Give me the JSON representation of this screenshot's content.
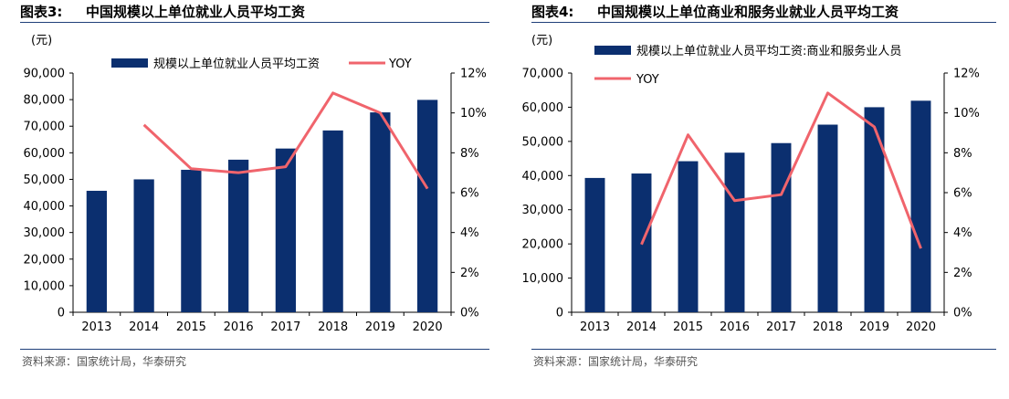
{
  "panels": [
    {
      "fig_label": "图表3:",
      "fig_title": "中国规模以上单位就业人员平均工资",
      "source": "资料来源：国家统计局，华泰研究",
      "chart_data": {
        "type": "bar+line",
        "unit_label": "(元)",
        "categories": [
          "2013",
          "2014",
          "2015",
          "2016",
          "2017",
          "2018",
          "2019",
          "2020"
        ],
        "series": [
          {
            "name": "规模以上单位就业人员平均工资",
            "type": "bar",
            "axis": "left",
            "values": [
              45700,
              50000,
              53600,
              57400,
              61600,
              68400,
              75200,
              79900
            ]
          },
          {
            "name": "YOY",
            "type": "line",
            "axis": "right",
            "values": [
              null,
              9.4,
              7.2,
              7.0,
              7.3,
              11.0,
              10.0,
              6.2
            ]
          }
        ],
        "left_axis": {
          "min": 0,
          "max": 90000,
          "step": 10000,
          "tick_labels": [
            "0",
            "10,000",
            "20,000",
            "30,000",
            "40,000",
            "50,000",
            "60,000",
            "70,000",
            "80,000",
            "90,000"
          ]
        },
        "right_axis": {
          "min": 0,
          "max": 12,
          "step": 2,
          "tick_labels": [
            "0%",
            "2%",
            "4%",
            "6%",
            "8%",
            "10%",
            "12%"
          ]
        },
        "legend": "top-inside",
        "grid": false
      }
    },
    {
      "fig_label": "图表4:",
      "fig_title": "中国规模以上单位商业和服务业就业人员平均工资",
      "source": "资料来源：国家统计局，华泰研究",
      "chart_data": {
        "type": "bar+line",
        "unit_label": "(元)",
        "categories": [
          "2013",
          "2014",
          "2015",
          "2016",
          "2017",
          "2018",
          "2019",
          "2020"
        ],
        "series": [
          {
            "name": "规模以上单位就业人员平均工资:商业和服务业人员",
            "type": "bar",
            "axis": "left",
            "values": [
              39300,
              40600,
              44200,
              46700,
              49500,
              54900,
              60000,
              61900
            ]
          },
          {
            "name": "YOY",
            "type": "line",
            "axis": "right",
            "values": [
              null,
              3.4,
              8.9,
              5.6,
              5.9,
              11.0,
              9.3,
              3.2
            ]
          }
        ],
        "left_axis": {
          "min": 0,
          "max": 70000,
          "step": 10000,
          "tick_labels": [
            "0",
            "10,000",
            "20,000",
            "30,000",
            "40,000",
            "50,000",
            "60,000",
            "70,000"
          ]
        },
        "right_axis": {
          "min": 0,
          "max": 12,
          "step": 2,
          "tick_labels": [
            "0%",
            "2%",
            "4%",
            "6%",
            "8%",
            "10%",
            "12%"
          ]
        },
        "legend": "top-inside-stacked",
        "grid": false
      }
    }
  ],
  "colors": {
    "bar": "#0b2f6f",
    "line": "#f0646c",
    "axis": "#000000",
    "rule": "#1f3f7a"
  }
}
